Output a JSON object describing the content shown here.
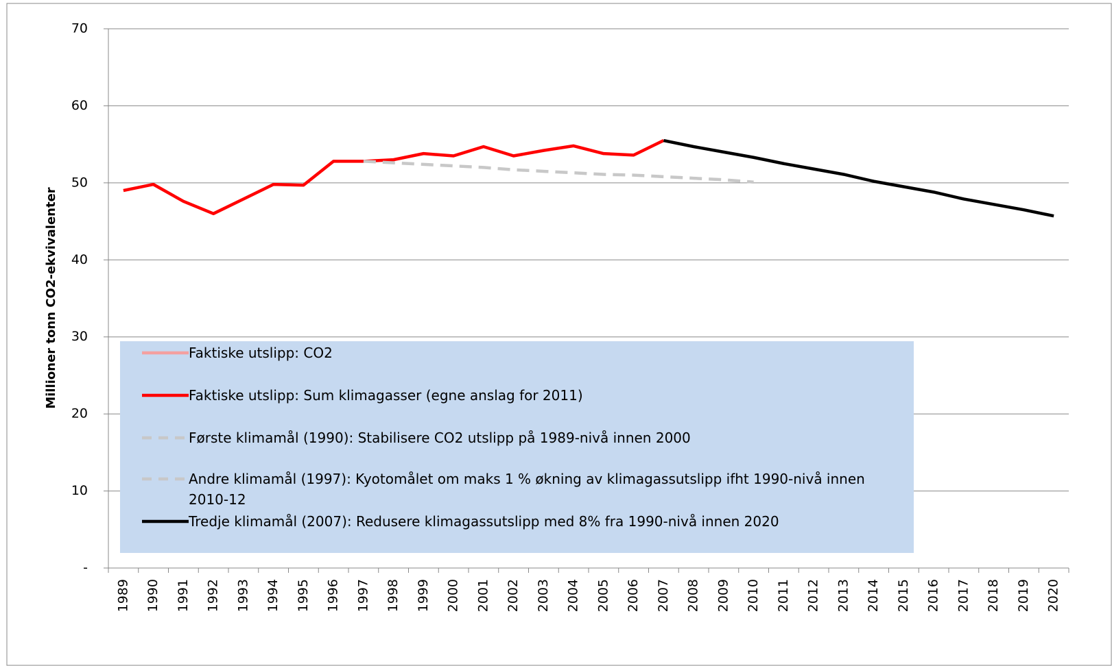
{
  "chart_data": {
    "type": "line",
    "ylabel": "Millioner tonn CO2-ekvivalenter",
    "categories": [
      "1989",
      "1990",
      "1991",
      "1992",
      "1993",
      "1994",
      "1995",
      "1996",
      "1997",
      "1998",
      "1999",
      "2000",
      "2001",
      "2002",
      "2003",
      "2004",
      "2005",
      "2006",
      "2007",
      "2008",
      "2009",
      "2010",
      "2011",
      "2012",
      "2013",
      "2014",
      "2015",
      "2016",
      "2017",
      "2018",
      "2019",
      "2020"
    ],
    "ylim": [
      0,
      70
    ],
    "yticks": [
      {
        "value": 0,
        "label": "-"
      },
      10,
      20,
      30,
      40,
      50,
      60,
      70
    ],
    "grid": true,
    "series": [
      {
        "name": "Faktiske utslipp: CO2",
        "color": "#f4a0a0",
        "dash": false,
        "values": [
          null,
          null,
          null,
          null,
          null,
          null,
          null,
          null,
          null,
          null,
          null,
          null,
          null,
          null,
          null,
          null,
          null,
          null,
          null,
          null,
          null,
          null,
          null,
          null,
          null,
          null,
          null,
          null,
          null,
          null,
          null,
          null
        ]
      },
      {
        "name": "Faktiske utslipp: Sum klimagasser  (egne anslag  for 2011)",
        "color": "#ff0000",
        "dash": false,
        "values": [
          49.0,
          49.8,
          47.6,
          46.0,
          47.9,
          49.8,
          49.7,
          52.8,
          52.8,
          53.0,
          53.8,
          53.5,
          54.7,
          53.5,
          54.2,
          54.8,
          53.8,
          53.6,
          55.5,
          null,
          null,
          null,
          null,
          null,
          null,
          null,
          null,
          null,
          null,
          null,
          null,
          null
        ]
      },
      {
        "name": "Første klimamål  (1990): Stabilisere CO2 utslipp  på 1989-nivå innen 2000",
        "color": "#c8c8c8",
        "dash": true,
        "values": [
          null,
          null,
          null,
          null,
          null,
          null,
          null,
          null,
          null,
          null,
          null,
          null,
          null,
          null,
          null,
          null,
          null,
          null,
          null,
          null,
          null,
          null,
          null,
          null,
          null,
          null,
          null,
          null,
          null,
          null,
          null,
          null
        ]
      },
      {
        "name": "Andre klimamål  (1997): Kyotomålet  om maks  1 % økning  av klimagassutslipp  ifht 1990-nivå innen 2010-12",
        "color": "#c8c8c8",
        "dash": true,
        "values": [
          null,
          null,
          null,
          null,
          null,
          null,
          null,
          null,
          52.8,
          52.6,
          52.4,
          52.2,
          52.0,
          51.7,
          51.5,
          51.3,
          51.1,
          51.0,
          50.8,
          50.6,
          50.4,
          50.1,
          null,
          null,
          null,
          null,
          null,
          null,
          null,
          null,
          null,
          null
        ]
      },
      {
        "name": "Tredje klimamål  (2007): Redusere klimagassutslipp  med 8% fra 1990-nivå innen 2020",
        "color": "#000000",
        "dash": false,
        "values": [
          null,
          null,
          null,
          null,
          null,
          null,
          null,
          null,
          null,
          null,
          null,
          null,
          null,
          null,
          null,
          null,
          null,
          null,
          55.5,
          54.7,
          54.0,
          53.3,
          52.5,
          51.8,
          51.1,
          50.2,
          49.5,
          48.8,
          47.9,
          47.2,
          46.5,
          45.7
        ]
      }
    ]
  }
}
